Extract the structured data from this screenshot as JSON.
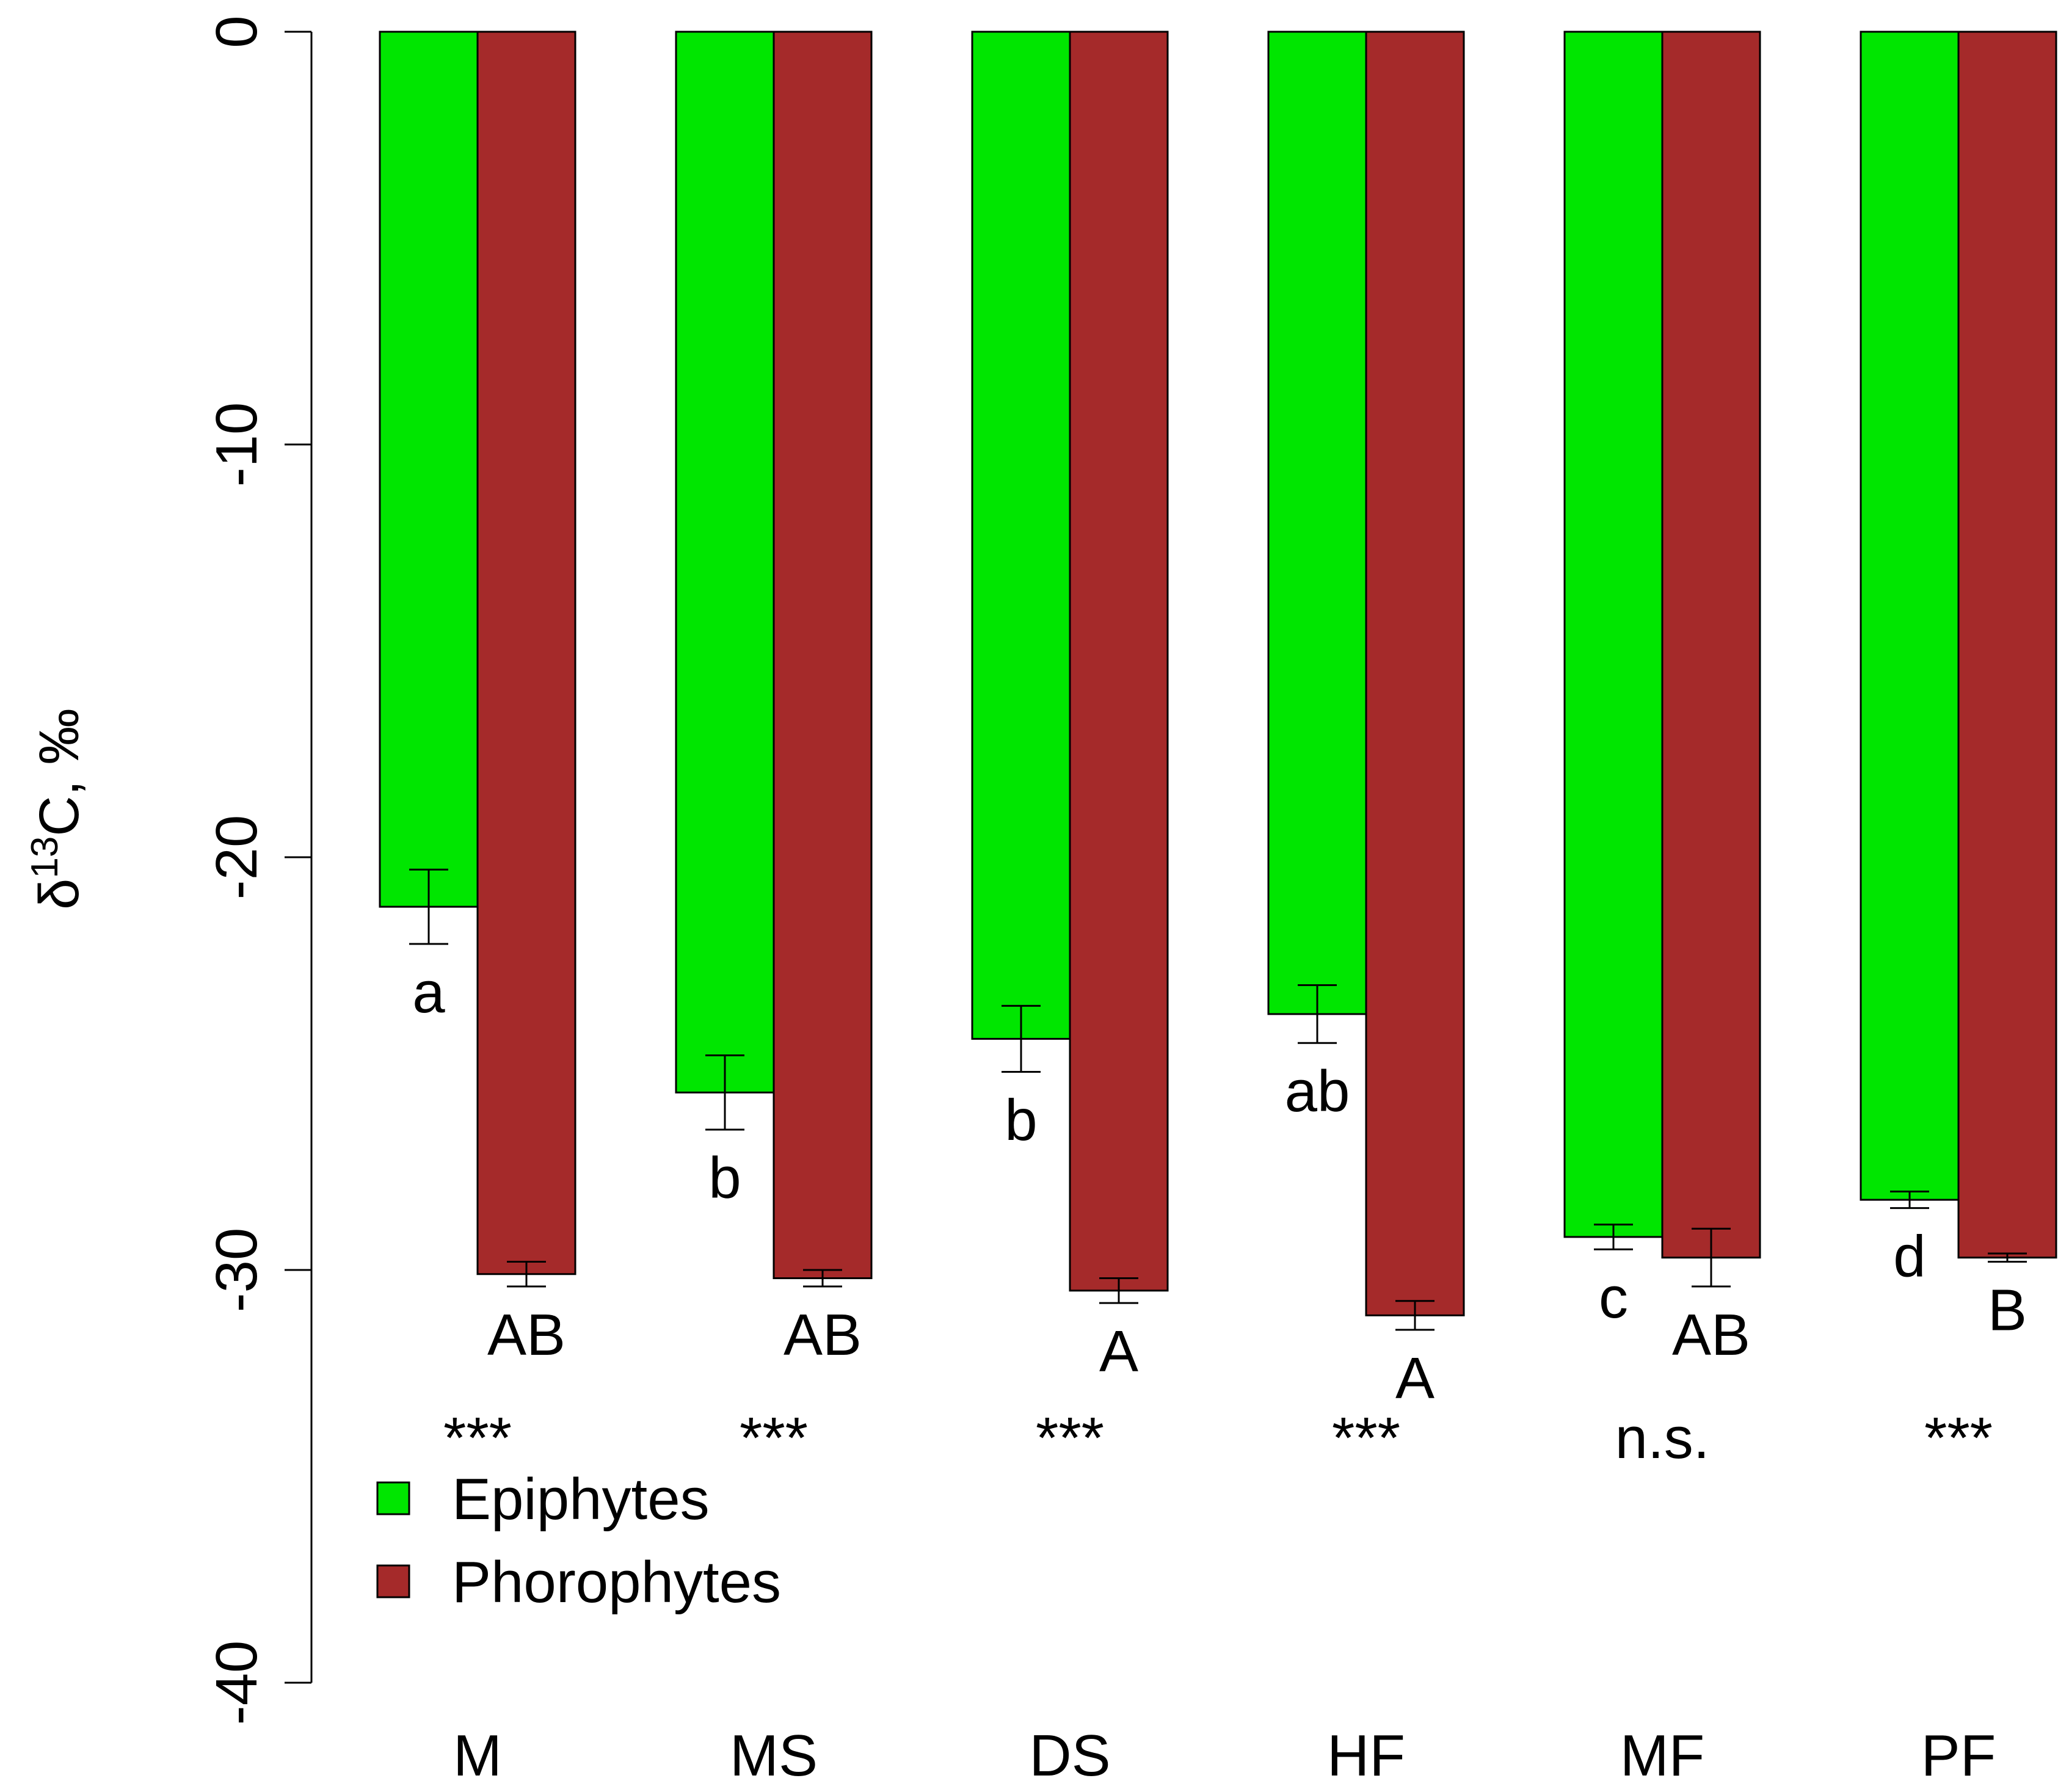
{
  "chart_data": {
    "type": "bar",
    "title": "",
    "xlabel": "",
    "ylabel_prefix": "δ",
    "ylabel_sup": "13",
    "ylabel_suffix": "C, ‰",
    "ylim": [
      -40,
      0
    ],
    "yticks": [
      {
        "value": 0,
        "label": "0"
      },
      {
        "value": -10,
        "label": "-10"
      },
      {
        "value": -20,
        "label": "-20"
      },
      {
        "value": -30,
        "label": "-30"
      },
      {
        "value": -40,
        "label": "-40"
      }
    ],
    "categories": [
      "M",
      "MS",
      "DS",
      "HF",
      "MF",
      "PF"
    ],
    "series": [
      {
        "name": "Epiphytes",
        "color": "#00e600",
        "values": [
          -21.2,
          -25.7,
          -24.4,
          -23.8,
          -29.2,
          -28.3
        ],
        "errors": [
          0.9,
          0.9,
          0.8,
          0.7,
          0.3,
          0.2
        ],
        "letters": [
          "a",
          "b",
          "b",
          "ab",
          "c",
          "d"
        ]
      },
      {
        "name": "Phorophytes",
        "color": "#a52a2a",
        "values": [
          -30.1,
          -30.2,
          -30.5,
          -31.1,
          -29.7,
          -29.7
        ],
        "errors": [
          0.3,
          0.2,
          0.3,
          0.35,
          0.7,
          0.1
        ],
        "letters": [
          "AB",
          "AB",
          "A",
          "A",
          "AB",
          "B"
        ]
      }
    ],
    "significance": [
      "***",
      "***",
      "***",
      "***",
      "n.s.",
      "***"
    ],
    "legend": {
      "position": "bottom-left",
      "entries": [
        {
          "label": "Epiphytes",
          "color": "#00e600"
        },
        {
          "label": "Phorophytes",
          "color": "#a52a2a"
        }
      ]
    }
  }
}
